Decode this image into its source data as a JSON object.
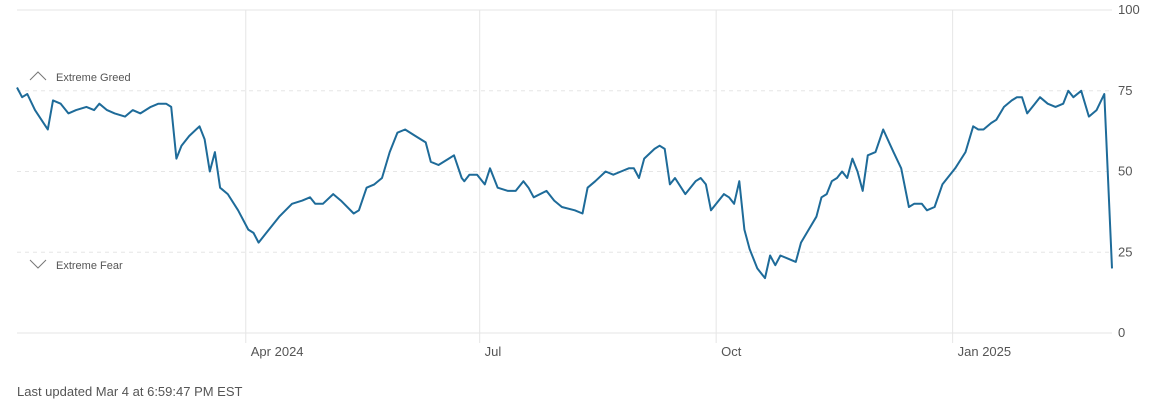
{
  "chart_data": {
    "type": "line",
    "title": "",
    "xlabel": "",
    "ylabel": "",
    "ylim": [
      0,
      100
    ],
    "yticks": [
      0,
      25,
      50,
      75,
      100
    ],
    "xticks": [
      {
        "label": "Apr 2024",
        "date": "2024-04-01"
      },
      {
        "label": "Jul",
        "date": "2024-07-01"
      },
      {
        "label": "Oct",
        "date": "2024-10-01"
      },
      {
        "label": "Jan 2025",
        "date": "2025-01-01"
      }
    ],
    "xlim": [
      "2024-01-03",
      "2025-03-04"
    ],
    "grid": true,
    "band_labels": {
      "greed": "Extreme Greed",
      "fear": "Extreme Fear"
    },
    "line_color": "#1e6b99",
    "series": [
      {
        "name": "",
        "points": [
          [
            "2024-01-03",
            76
          ],
          [
            "2024-01-05",
            73
          ],
          [
            "2024-01-07",
            74
          ],
          [
            "2024-01-10",
            69
          ],
          [
            "2024-01-15",
            63
          ],
          [
            "2024-01-17",
            72
          ],
          [
            "2024-01-20",
            71
          ],
          [
            "2024-01-23",
            68
          ],
          [
            "2024-01-26",
            69
          ],
          [
            "2024-01-30",
            70
          ],
          [
            "2024-02-02",
            69
          ],
          [
            "2024-02-04",
            71
          ],
          [
            "2024-02-07",
            69
          ],
          [
            "2024-02-10",
            68
          ],
          [
            "2024-02-14",
            67
          ],
          [
            "2024-02-17",
            69
          ],
          [
            "2024-02-20",
            68
          ],
          [
            "2024-02-24",
            70
          ],
          [
            "2024-02-27",
            71
          ],
          [
            "2024-03-01",
            71
          ],
          [
            "2024-03-03",
            70
          ],
          [
            "2024-03-05",
            54
          ],
          [
            "2024-03-07",
            58
          ],
          [
            "2024-03-10",
            61
          ],
          [
            "2024-03-14",
            64
          ],
          [
            "2024-03-16",
            60
          ],
          [
            "2024-03-18",
            50
          ],
          [
            "2024-03-20",
            56
          ],
          [
            "2024-03-22",
            45
          ],
          [
            "2024-03-25",
            43
          ],
          [
            "2024-03-29",
            38
          ],
          [
            "2024-04-02",
            32
          ],
          [
            "2024-04-04",
            31
          ],
          [
            "2024-04-06",
            28
          ],
          [
            "2024-04-09",
            31
          ],
          [
            "2024-04-14",
            36
          ],
          [
            "2024-04-19",
            40
          ],
          [
            "2024-04-23",
            41
          ],
          [
            "2024-04-26",
            42
          ],
          [
            "2024-04-28",
            40
          ],
          [
            "2024-05-01",
            40
          ],
          [
            "2024-05-05",
            43
          ],
          [
            "2024-05-08",
            41
          ],
          [
            "2024-05-13",
            37
          ],
          [
            "2024-05-15",
            38
          ],
          [
            "2024-05-18",
            45
          ],
          [
            "2024-05-21",
            46
          ],
          [
            "2024-05-24",
            48
          ],
          [
            "2024-05-27",
            56
          ],
          [
            "2024-05-30",
            62
          ],
          [
            "2024-06-02",
            63
          ],
          [
            "2024-06-06",
            61
          ],
          [
            "2024-06-10",
            59
          ],
          [
            "2024-06-12",
            53
          ],
          [
            "2024-06-15",
            52
          ],
          [
            "2024-06-19",
            54
          ],
          [
            "2024-06-21",
            55
          ],
          [
            "2024-06-24",
            48
          ],
          [
            "2024-06-25",
            47
          ],
          [
            "2024-06-27",
            49
          ],
          [
            "2024-06-30",
            49
          ],
          [
            "2024-07-03",
            46
          ],
          [
            "2024-07-05",
            51
          ],
          [
            "2024-07-08",
            45
          ],
          [
            "2024-07-12",
            44
          ],
          [
            "2024-07-15",
            44
          ],
          [
            "2024-07-18",
            47
          ],
          [
            "2024-07-20",
            45
          ],
          [
            "2024-07-22",
            42
          ],
          [
            "2024-07-27",
            44
          ],
          [
            "2024-07-30",
            41
          ],
          [
            "2024-08-02",
            39
          ],
          [
            "2024-08-07",
            38
          ],
          [
            "2024-08-10",
            37
          ],
          [
            "2024-08-12",
            45
          ],
          [
            "2024-08-15",
            47
          ],
          [
            "2024-08-19",
            50
          ],
          [
            "2024-08-22",
            49
          ],
          [
            "2024-08-25",
            50
          ],
          [
            "2024-08-28",
            51
          ],
          [
            "2024-08-30",
            51
          ],
          [
            "2024-09-01",
            48
          ],
          [
            "2024-09-03",
            54
          ],
          [
            "2024-09-07",
            57
          ],
          [
            "2024-09-09",
            58
          ],
          [
            "2024-09-11",
            57
          ],
          [
            "2024-09-13",
            46
          ],
          [
            "2024-09-15",
            48
          ],
          [
            "2024-09-19",
            43
          ],
          [
            "2024-09-23",
            47
          ],
          [
            "2024-09-25",
            48
          ],
          [
            "2024-09-27",
            46
          ],
          [
            "2024-09-29",
            38
          ],
          [
            "2024-10-01",
            40
          ],
          [
            "2024-10-04",
            43
          ],
          [
            "2024-10-06",
            42
          ],
          [
            "2024-10-08",
            40
          ],
          [
            "2024-10-10",
            47
          ],
          [
            "2024-10-12",
            32
          ],
          [
            "2024-10-14",
            26
          ],
          [
            "2024-10-17",
            20
          ],
          [
            "2024-10-20",
            17
          ],
          [
            "2024-10-22",
            24
          ],
          [
            "2024-10-24",
            21
          ],
          [
            "2024-10-26",
            24
          ],
          [
            "2024-10-29",
            23
          ],
          [
            "2024-11-01",
            22
          ],
          [
            "2024-11-03",
            28
          ],
          [
            "2024-11-06",
            32
          ],
          [
            "2024-11-09",
            36
          ],
          [
            "2024-11-11",
            42
          ],
          [
            "2024-11-13",
            43
          ],
          [
            "2024-11-15",
            47
          ],
          [
            "2024-11-17",
            48
          ],
          [
            "2024-11-19",
            50
          ],
          [
            "2024-11-21",
            48
          ],
          [
            "2024-11-23",
            54
          ],
          [
            "2024-11-25",
            50
          ],
          [
            "2024-11-27",
            44
          ],
          [
            "2024-11-29",
            55
          ],
          [
            "2024-12-02",
            56
          ],
          [
            "2024-12-05",
            63
          ],
          [
            "2024-12-09",
            56
          ],
          [
            "2024-12-12",
            51
          ],
          [
            "2024-12-15",
            39
          ],
          [
            "2024-12-17",
            40
          ],
          [
            "2024-12-20",
            40
          ],
          [
            "2024-12-22",
            38
          ],
          [
            "2024-12-25",
            39
          ],
          [
            "2024-12-28",
            46
          ],
          [
            "2025-01-02",
            51
          ],
          [
            "2025-01-06",
            56
          ],
          [
            "2025-01-09",
            64
          ],
          [
            "2025-01-11",
            63
          ],
          [
            "2025-01-13",
            63
          ],
          [
            "2025-01-16",
            65
          ],
          [
            "2025-01-18",
            66
          ],
          [
            "2025-01-21",
            70
          ],
          [
            "2025-01-24",
            72
          ],
          [
            "2025-01-26",
            73
          ],
          [
            "2025-01-28",
            73
          ],
          [
            "2025-01-30",
            68
          ],
          [
            "2025-02-02",
            71
          ],
          [
            "2025-02-04",
            73
          ],
          [
            "2025-02-07",
            71
          ],
          [
            "2025-02-10",
            70
          ],
          [
            "2025-02-13",
            71
          ],
          [
            "2025-02-15",
            75
          ],
          [
            "2025-02-17",
            73
          ],
          [
            "2025-02-20",
            75
          ],
          [
            "2025-02-23",
            67
          ],
          [
            "2025-02-26",
            69
          ],
          [
            "2025-03-01",
            74
          ],
          [
            "2025-03-04",
            20
          ]
        ]
      }
    ]
  },
  "footer": {
    "last_updated": "Last updated Mar 4 at 6:59:47 PM EST"
  }
}
